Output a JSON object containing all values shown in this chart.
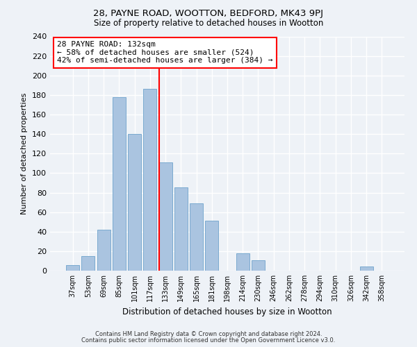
{
  "title": "28, PAYNE ROAD, WOOTTON, BEDFORD, MK43 9PJ",
  "subtitle": "Size of property relative to detached houses in Wootton",
  "xlabel": "Distribution of detached houses by size in Wootton",
  "ylabel": "Number of detached properties",
  "bar_labels": [
    "37sqm",
    "53sqm",
    "69sqm",
    "85sqm",
    "101sqm",
    "117sqm",
    "133sqm",
    "149sqm",
    "165sqm",
    "181sqm",
    "198sqm",
    "214sqm",
    "230sqm",
    "246sqm",
    "262sqm",
    "278sqm",
    "294sqm",
    "310sqm",
    "326sqm",
    "342sqm",
    "358sqm"
  ],
  "bar_values": [
    6,
    15,
    42,
    178,
    140,
    186,
    111,
    85,
    69,
    51,
    0,
    18,
    11,
    0,
    0,
    0,
    0,
    0,
    0,
    4,
    0
  ],
  "bar_color": "#aac4e0",
  "bar_edge_color": "#7aaad0",
  "vline_color": "red",
  "annotation_title": "28 PAYNE ROAD: 132sqm",
  "annotation_line1": "← 58% of detached houses are smaller (524)",
  "annotation_line2": "42% of semi-detached houses are larger (384) →",
  "annotation_box_color": "white",
  "annotation_box_edge": "red",
  "ylim": [
    0,
    240
  ],
  "yticks": [
    0,
    20,
    40,
    60,
    80,
    100,
    120,
    140,
    160,
    180,
    200,
    220,
    240
  ],
  "footer_line1": "Contains HM Land Registry data © Crown copyright and database right 2024.",
  "footer_line2": "Contains public sector information licensed under the Open Government Licence v3.0.",
  "bg_color": "#eef2f7"
}
